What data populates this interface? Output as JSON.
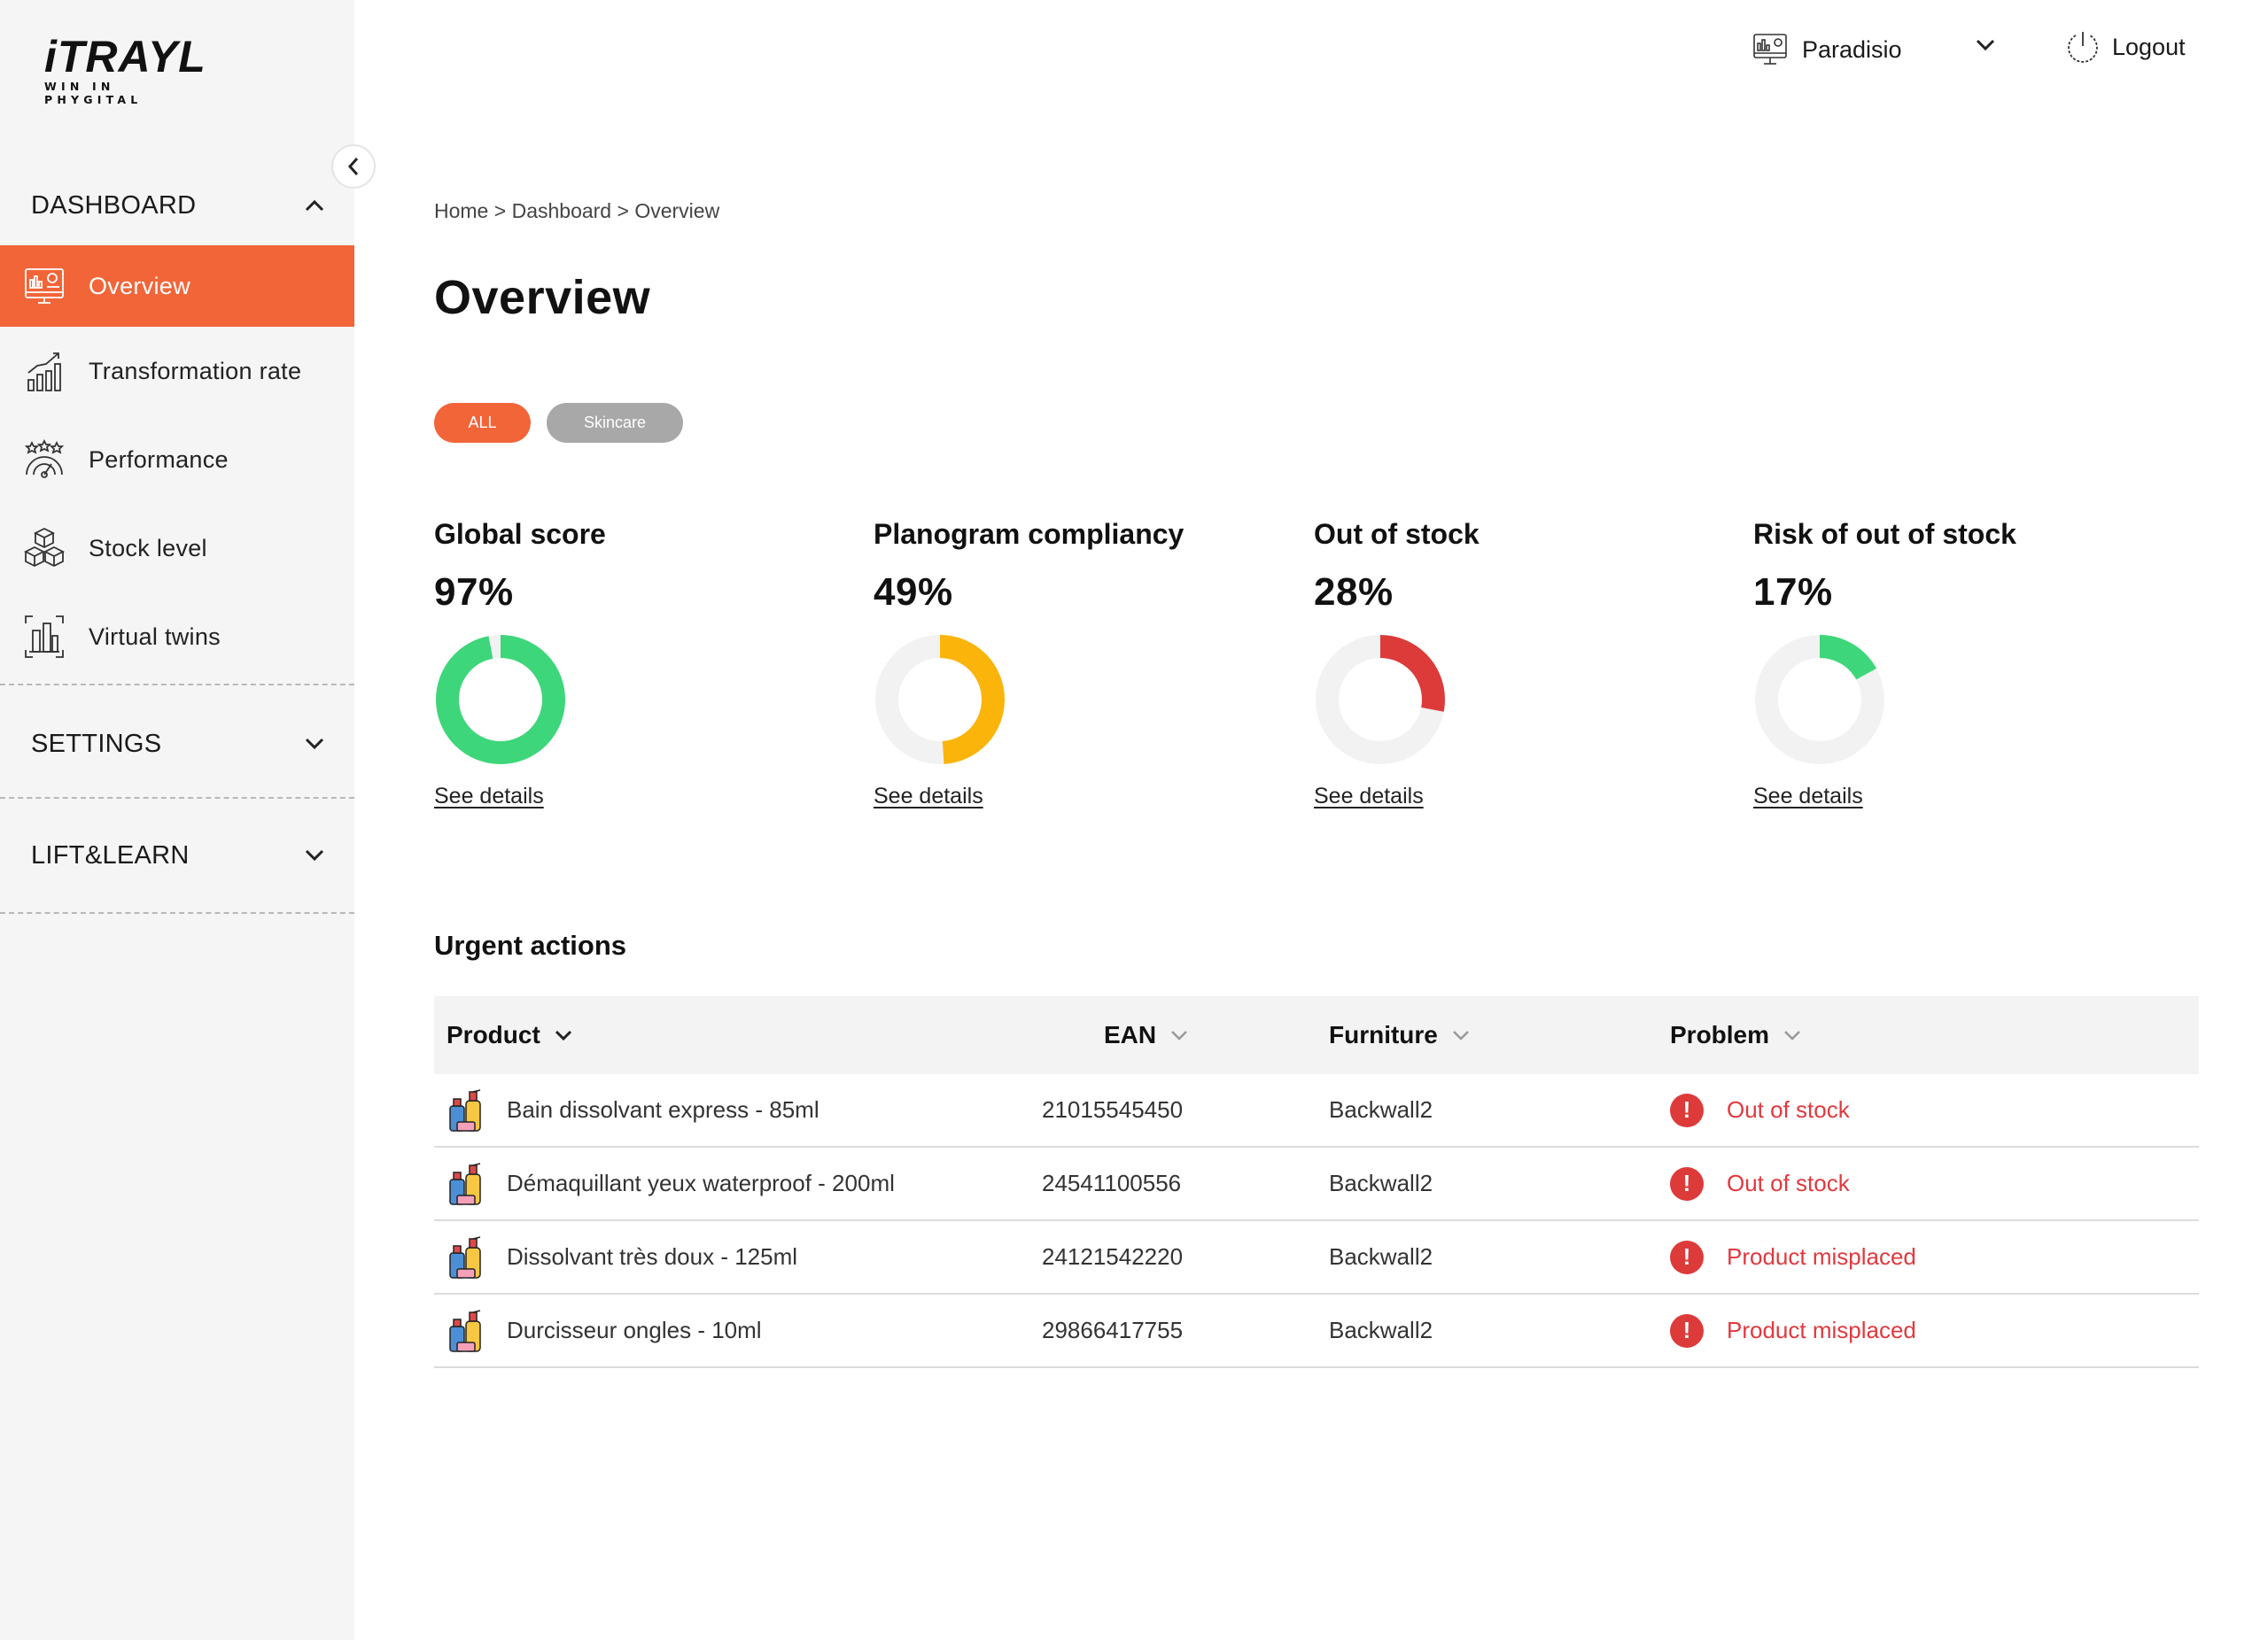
{
  "brand": {
    "name": "iTRAYL",
    "tagline": "WIN IN PHYGITAL",
    "accent": "#f26539"
  },
  "topbar": {
    "store_name": "Paradisio",
    "logout_label": "Logout"
  },
  "sidebar": {
    "dashboard_label": "DASHBOARD",
    "items": [
      {
        "label": "Overview",
        "icon": "dashboard-screen-icon",
        "active": true
      },
      {
        "label": "Transformation rate",
        "icon": "growth-chart-icon",
        "active": false
      },
      {
        "label": "Performance",
        "icon": "performance-gauge-icon",
        "active": false
      },
      {
        "label": "Stock level",
        "icon": "stock-boxes-icon",
        "active": false
      },
      {
        "label": "Virtual twins",
        "icon": "virtual-twin-shelf-icon",
        "active": false
      }
    ],
    "settings_label": "SETTINGS",
    "liftlearn_label": "LIFT&LEARN"
  },
  "breadcrumb": {
    "home": "Home",
    "sep": ">",
    "dashboard": "Dashboard",
    "current": "Overview"
  },
  "page": {
    "title": "Overview"
  },
  "filters": {
    "all_label": "ALL",
    "skincare_label": "Skincare"
  },
  "kpis": [
    {
      "title": "Global score",
      "value": "97%",
      "percent": 97,
      "color": "#3ed67a",
      "link": "See details"
    },
    {
      "title": "Planogram compliancy",
      "value": "49%",
      "percent": 49,
      "color": "#fbb40a",
      "link": "See details"
    },
    {
      "title": "Out of stock",
      "value": "28%",
      "percent": 28,
      "color": "#dd3a3a",
      "link": "See details"
    },
    {
      "title": "Risk of out of stock",
      "value": "17%",
      "percent": 17,
      "color": "#3ed67a",
      "link": "See details"
    }
  ],
  "urgent": {
    "title": "Urgent actions",
    "columns": {
      "product": "Product",
      "ean": "EAN",
      "furniture": "Furniture",
      "problem": "Problem"
    },
    "rows": [
      {
        "product": "Bain dissolvant express - 85ml",
        "ean": "21015545450",
        "furniture": "Backwall2",
        "problem": "Out of stock"
      },
      {
        "product": "Démaquillant yeux waterproof - 200ml",
        "ean": "24541100556",
        "furniture": "Backwall2",
        "problem": "Out of stock"
      },
      {
        "product": "Dissolvant très doux - 125ml",
        "ean": "24121542220",
        "furniture": "Backwall2",
        "problem": "Product misplaced"
      },
      {
        "product": "Durcisseur ongles - 10ml",
        "ean": "29866417755",
        "furniture": "Backwall2",
        "problem": "Product misplaced"
      }
    ]
  }
}
